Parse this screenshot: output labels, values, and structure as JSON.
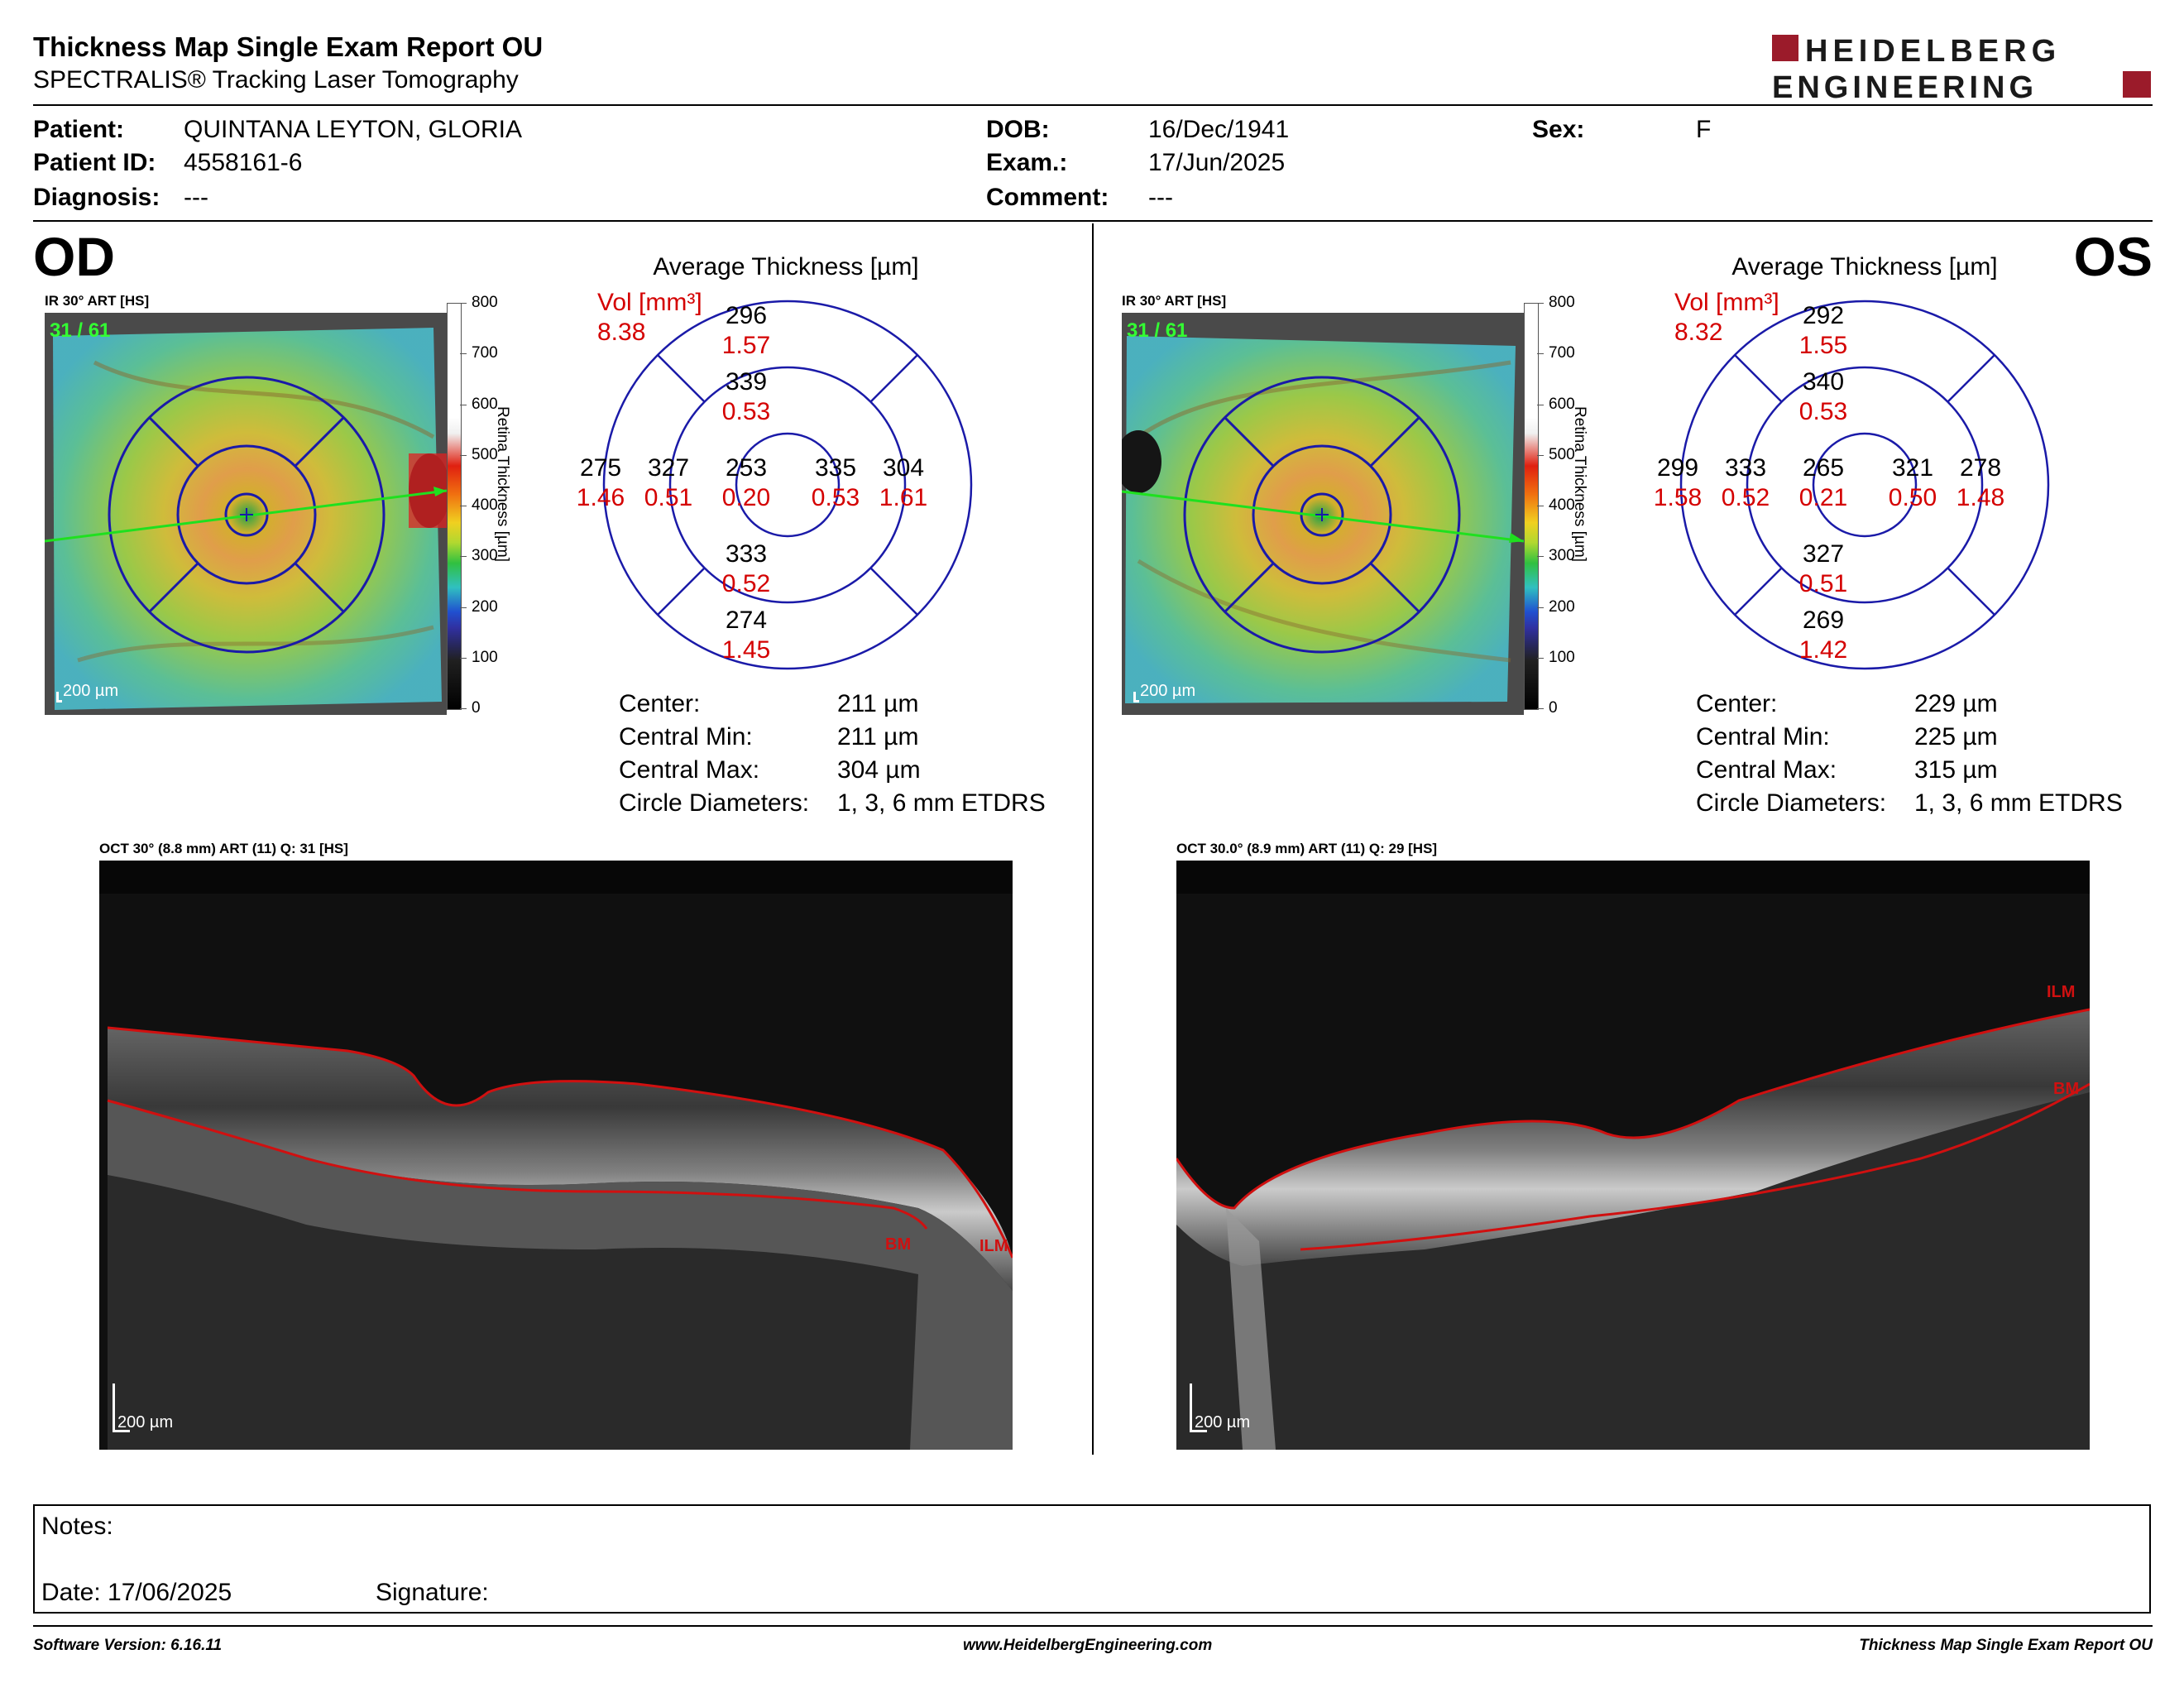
{
  "header": {
    "title": "Thickness Map Single Exam Report OU",
    "subtitle": "SPECTRALIS® Tracking Laser Tomography",
    "logo_line1": "HEIDELBERG",
    "logo_line2": "ENGINEERING"
  },
  "patient": {
    "patient_label": "Patient:",
    "patient_value": "QUINTANA LEYTON, GLORIA",
    "id_label": "Patient ID:",
    "id_value": "4558161-6",
    "diagnosis_label": "Diagnosis:",
    "diagnosis_value": "---",
    "dob_label": "DOB:",
    "dob_value": "16/Dec/1941",
    "exam_label": "Exam.:",
    "exam_value": "17/Jun/2025",
    "comment_label": "Comment:",
    "comment_value": "---",
    "sex_label": "Sex:",
    "sex_value": "F"
  },
  "common": {
    "avg_title": "Average Thickness [µm]",
    "vol_label": "Vol [mm³]",
    "colorbar_title": "Retina  Thickness [µm]",
    "colorbar_ticks": [
      "800",
      "700",
      "600",
      "500",
      "400",
      "300",
      "200",
      "100",
      "0"
    ],
    "scale_text": "200 µm",
    "center_label": "Center:",
    "cmin_label": "Central Min:",
    "cmax_label": "Central Max:",
    "circ_label": "Circle Diameters:",
    "circ_value": "1, 3, 6 mm ETDRS"
  },
  "od": {
    "eye": "OD",
    "ir_label": "IR 30° ART [HS]",
    "frames": "31 / 61",
    "volume": "8.38",
    "grid": {
      "center": [
        "253",
        "0.20"
      ],
      "inner_sup": [
        "339",
        "0.53"
      ],
      "inner_inf": [
        "333",
        "0.52"
      ],
      "inner_left": [
        "327",
        "0.51"
      ],
      "inner_right": [
        "335",
        "0.53"
      ],
      "outer_sup": [
        "296",
        "1.57"
      ],
      "outer_inf": [
        "274",
        "1.45"
      ],
      "outer_left": [
        "275",
        "1.46"
      ],
      "outer_right": [
        "304",
        "1.61"
      ]
    },
    "center_value": "211 µm",
    "cmin_value": "211 µm",
    "cmax_value": "304 µm",
    "oct_label": "OCT 30° (8.8 mm) ART (11) Q: 31 [HS]",
    "bm_label": "BM",
    "ilm_label": "ILM"
  },
  "os": {
    "eye": "OS",
    "ir_label": "IR 30° ART [HS]",
    "frames": "31 / 61",
    "volume": "8.32",
    "grid": {
      "center": [
        "265",
        "0.21"
      ],
      "inner_sup": [
        "340",
        "0.53"
      ],
      "inner_inf": [
        "327",
        "0.51"
      ],
      "inner_left": [
        "333",
        "0.52"
      ],
      "inner_right": [
        "321",
        "0.50"
      ],
      "outer_sup": [
        "292",
        "1.55"
      ],
      "outer_inf": [
        "269",
        "1.42"
      ],
      "outer_left": [
        "299",
        "1.58"
      ],
      "outer_right": [
        "278",
        "1.48"
      ]
    },
    "center_value": "229 µm",
    "cmin_value": "225 µm",
    "cmax_value": "315 µm",
    "oct_label": "OCT 30.0° (8.9 mm) ART (11) Q: 29 [HS]",
    "ilm_label": "ILM",
    "bm_label": "BM"
  },
  "notes": {
    "notes_label": "Notes:",
    "date_label": "Date: 17/06/2025",
    "signature_label": "Signature:"
  },
  "footer": {
    "software": "Software Version: 6.16.11",
    "website": "www.HeidelbergEngineering.com",
    "report_name": "Thickness Map Single Exam Report OU"
  },
  "colors": {
    "grid_blue": "#1a1aa8",
    "value_red": "#d40000",
    "logo_red": "#9b1b2a",
    "frames_green": "#33ff33",
    "line_green": "#1fe01f",
    "seg_red": "#d01010"
  }
}
